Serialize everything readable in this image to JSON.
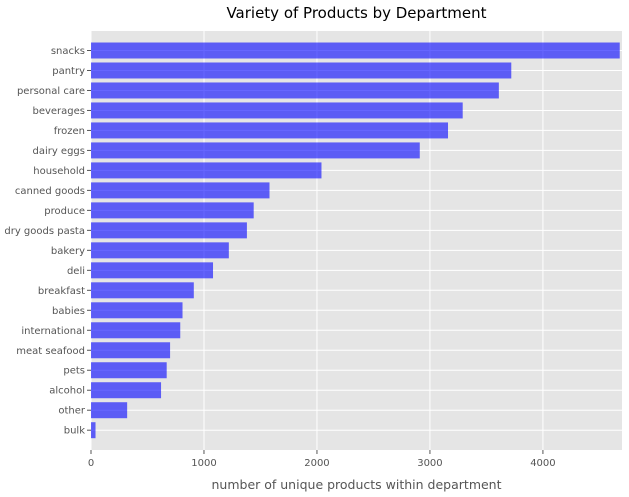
{
  "chart_data": {
    "type": "bar",
    "orientation": "horizontal",
    "title": "Variety of Products by Department",
    "xlabel": "number of unique products within department",
    "ylabel": "",
    "xlim": [
      0,
      4700
    ],
    "xticks": [
      0,
      1000,
      2000,
      3000,
      4000
    ],
    "grid": true,
    "bar_color": "#0000ff",
    "bar_opacity": 0.6,
    "background_color": "#e5e5e5",
    "grid_color": "#ffffff",
    "categories": [
      "snacks",
      "pantry",
      "personal care",
      "beverages",
      "frozen",
      "dairy eggs",
      "household",
      "canned goods",
      "produce",
      "dry goods pasta",
      "bakery",
      "deli",
      "breakfast",
      "babies",
      "international",
      "meat seafood",
      "pets",
      "alcohol",
      "other",
      "bulk"
    ],
    "values": [
      4680,
      3720,
      3610,
      3290,
      3160,
      2910,
      2040,
      1580,
      1440,
      1380,
      1220,
      1080,
      910,
      810,
      790,
      700,
      670,
      620,
      320,
      40
    ]
  }
}
